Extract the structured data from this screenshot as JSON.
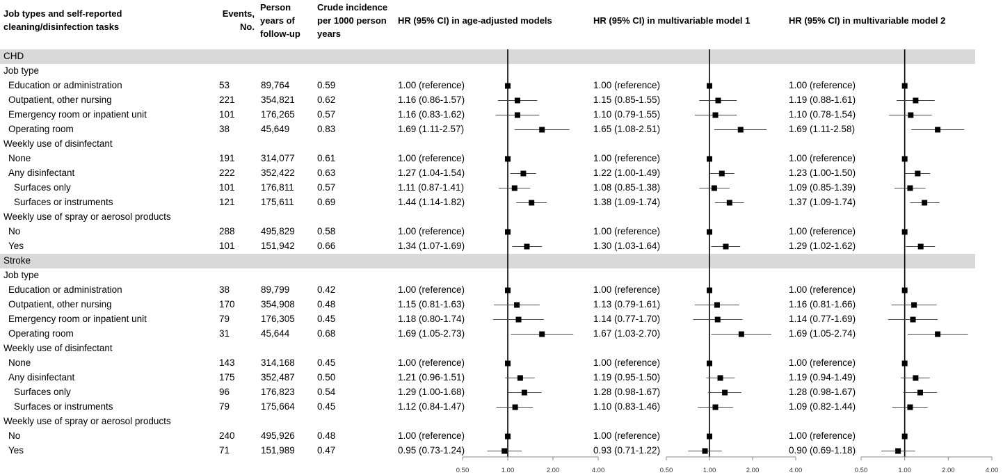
{
  "headers": {
    "task": [
      "Job types and self-reported",
      "cleaning/disinfection tasks"
    ],
    "events": [
      "Events,",
      "No."
    ],
    "person_years": [
      "Person",
      "years of",
      "follow-up"
    ],
    "crude": [
      "Crude incidence",
      "per 1000 person",
      "years"
    ],
    "m0": "HR (95% CI) in age-adjusted models",
    "m1": "HR (95% CI) in multivariable model 1",
    "m2": "HR (95% CI) in multivariable model 2"
  },
  "rows": [
    {
      "type": "band",
      "label": "CHD"
    },
    {
      "type": "group",
      "label": "Job type"
    },
    {
      "type": "data",
      "label": "Education or administration",
      "indent": 1,
      "events": "53",
      "py": "89,764",
      "crude": "0.59",
      "ci": [
        "1.00 (reference)",
        "1.00 (reference)",
        "1.00 (reference)"
      ],
      "hr": [
        [
          1.0,
          1.0,
          1.0
        ],
        [
          1.0,
          1.0,
          1.0
        ],
        [
          1.0,
          1.0,
          1.0
        ]
      ]
    },
    {
      "type": "data",
      "label": "Outpatient, other nursing",
      "indent": 1,
      "events": "221",
      "py": "354,821",
      "crude": "0.62",
      "ci": [
        "1.16 (0.86-1.57)",
        "1.15 (0.85-1.55)",
        "1.19 (0.88-1.61)"
      ],
      "hr": [
        [
          1.16,
          0.86,
          1.57
        ],
        [
          1.15,
          0.85,
          1.55
        ],
        [
          1.19,
          0.88,
          1.61
        ]
      ]
    },
    {
      "type": "data",
      "label": "Emergency room or inpatient unit",
      "indent": 1,
      "events": "101",
      "py": "176,265",
      "crude": "0.57",
      "ci": [
        "1.16 (0.83-1.62)",
        "1.10 (0.79-1.55)",
        "1.10 (0.78-1.54)"
      ],
      "hr": [
        [
          1.16,
          0.83,
          1.62
        ],
        [
          1.1,
          0.79,
          1.55
        ],
        [
          1.1,
          0.78,
          1.54
        ]
      ]
    },
    {
      "type": "data",
      "label": "Operating room",
      "indent": 1,
      "events": "38",
      "py": "45,649",
      "crude": "0.83",
      "ci": [
        "1.69 (1.11-2.57)",
        "1.65 (1.08-2.51)",
        "1.69 (1.11-2.58)"
      ],
      "hr": [
        [
          1.69,
          1.11,
          2.57
        ],
        [
          1.65,
          1.08,
          2.51
        ],
        [
          1.69,
          1.11,
          2.58
        ]
      ]
    },
    {
      "type": "group",
      "label": "Weekly use of disinfectant"
    },
    {
      "type": "data",
      "label": "None",
      "indent": 1,
      "events": "191",
      "py": "314,077",
      "crude": "0.61",
      "ci": [
        "1.00 (reference)",
        "1.00 (reference)",
        "1.00 (reference)"
      ],
      "hr": [
        [
          1.0,
          1.0,
          1.0
        ],
        [
          1.0,
          1.0,
          1.0
        ],
        [
          1.0,
          1.0,
          1.0
        ]
      ]
    },
    {
      "type": "data",
      "label": "Any disinfectant",
      "indent": 1,
      "events": "222",
      "py": "352,422",
      "crude": "0.63",
      "ci": [
        "1.27 (1.04-1.54)",
        "1.22 (1.00-1.49)",
        "1.23 (1.00-1.50)"
      ],
      "hr": [
        [
          1.27,
          1.04,
          1.54
        ],
        [
          1.22,
          1.0,
          1.49
        ],
        [
          1.23,
          1.0,
          1.5
        ]
      ]
    },
    {
      "type": "data",
      "label": "Surfaces only",
      "indent": 2,
      "events": "101",
      "py": "176,811",
      "crude": "0.57",
      "ci": [
        "1.11 (0.87-1.41)",
        "1.08 (0.85-1.38)",
        "1.09 (0.85-1.39)"
      ],
      "hr": [
        [
          1.11,
          0.87,
          1.41
        ],
        [
          1.08,
          0.85,
          1.38
        ],
        [
          1.09,
          0.85,
          1.39
        ]
      ]
    },
    {
      "type": "data",
      "label": "Surfaces or instruments",
      "indent": 2,
      "events": "121",
      "py": "175,611",
      "crude": "0.69",
      "ci": [
        "1.44 (1.14-1.82)",
        "1.38 (1.09-1.74)",
        "1.37 (1.09-1.74)"
      ],
      "hr": [
        [
          1.44,
          1.14,
          1.82
        ],
        [
          1.38,
          1.09,
          1.74
        ],
        [
          1.37,
          1.09,
          1.74
        ]
      ]
    },
    {
      "type": "group",
      "label": "Weekly use of spray or aerosol products"
    },
    {
      "type": "data",
      "label": "No",
      "indent": 1,
      "events": "288",
      "py": "495,829",
      "crude": "0.58",
      "ci": [
        "1.00 (reference)",
        "1.00 (reference)",
        "1.00 (reference)"
      ],
      "hr": [
        [
          1.0,
          1.0,
          1.0
        ],
        [
          1.0,
          1.0,
          1.0
        ],
        [
          1.0,
          1.0,
          1.0
        ]
      ]
    },
    {
      "type": "data",
      "label": "Yes",
      "indent": 1,
      "events": "101",
      "py": "151,942",
      "crude": "0.66",
      "ci": [
        "1.34 (1.07-1.69)",
        "1.30 (1.03-1.64)",
        "1.29 (1.02-1.62)"
      ],
      "hr": [
        [
          1.34,
          1.07,
          1.69
        ],
        [
          1.3,
          1.03,
          1.64
        ],
        [
          1.29,
          1.02,
          1.62
        ]
      ]
    },
    {
      "type": "band",
      "label": "Stroke"
    },
    {
      "type": "group",
      "label": "Job type"
    },
    {
      "type": "data",
      "label": "Education or administration",
      "indent": 1,
      "events": "38",
      "py": "89,799",
      "crude": "0.42",
      "ci": [
        "1.00 (reference)",
        "1.00 (reference)",
        "1.00 (reference)"
      ],
      "hr": [
        [
          1.0,
          1.0,
          1.0
        ],
        [
          1.0,
          1.0,
          1.0
        ],
        [
          1.0,
          1.0,
          1.0
        ]
      ]
    },
    {
      "type": "data",
      "label": "Outpatient, other nursing",
      "indent": 1,
      "events": "170",
      "py": "354,908",
      "crude": "0.48",
      "ci": [
        "1.15 (0.81-1.63)",
        "1.13 (0.79-1.61)",
        "1.16 (0.81-1.66)"
      ],
      "hr": [
        [
          1.15,
          0.81,
          1.63
        ],
        [
          1.13,
          0.79,
          1.61
        ],
        [
          1.16,
          0.81,
          1.66
        ]
      ]
    },
    {
      "type": "data",
      "label": "Emergency room or inpatient unit",
      "indent": 1,
      "events": "79",
      "py": "176,305",
      "crude": "0.45",
      "ci": [
        "1.18 (0.80-1.74)",
        "1.14 (0.77-1.70)",
        "1.14 (0.77-1.69)"
      ],
      "hr": [
        [
          1.18,
          0.8,
          1.74
        ],
        [
          1.14,
          0.77,
          1.7
        ],
        [
          1.14,
          0.77,
          1.69
        ]
      ]
    },
    {
      "type": "data",
      "label": "Operating room",
      "indent": 1,
      "events": "31",
      "py": "45,644",
      "crude": "0.68",
      "ci": [
        "1.69 (1.05-2.73)",
        "1.67 (1.03-2.70)",
        "1.69 (1.05-2.74)"
      ],
      "hr": [
        [
          1.69,
          1.05,
          2.73
        ],
        [
          1.67,
          1.03,
          2.7
        ],
        [
          1.69,
          1.05,
          2.74
        ]
      ]
    },
    {
      "type": "group",
      "label": "Weekly use of disinfectant"
    },
    {
      "type": "data",
      "label": "None",
      "indent": 1,
      "events": "143",
      "py": "314,168",
      "crude": "0.45",
      "ci": [
        "1.00 (reference)",
        "1.00 (reference)",
        "1.00 (reference)"
      ],
      "hr": [
        [
          1.0,
          1.0,
          1.0
        ],
        [
          1.0,
          1.0,
          1.0
        ],
        [
          1.0,
          1.0,
          1.0
        ]
      ]
    },
    {
      "type": "data",
      "label": "Any disinfectant",
      "indent": 1,
      "events": "175",
      "py": "352,487",
      "crude": "0.50",
      "ci": [
        "1.21 (0.96-1.51)",
        "1.19 (0.95-1.50)",
        "1.19 (0.94-1.49)"
      ],
      "hr": [
        [
          1.21,
          0.96,
          1.51
        ],
        [
          1.19,
          0.95,
          1.5
        ],
        [
          1.19,
          0.94,
          1.49
        ]
      ]
    },
    {
      "type": "data",
      "label": "Surfaces only",
      "indent": 2,
      "events": "96",
      "py": "176,823",
      "crude": "0.54",
      "ci": [
        "1.29 (1.00-1.68)",
        "1.28 (0.98-1.67)",
        "1.28 (0.98-1.67)"
      ],
      "hr": [
        [
          1.29,
          1.0,
          1.68
        ],
        [
          1.28,
          0.98,
          1.67
        ],
        [
          1.28,
          0.98,
          1.67
        ]
      ]
    },
    {
      "type": "data",
      "label": "Surfaces or instruments",
      "indent": 2,
      "events": "79",
      "py": "175,664",
      "crude": "0.45",
      "ci": [
        "1.12 (0.84-1.47)",
        "1.10 (0.83-1.46)",
        "1.09 (0.82-1.44)"
      ],
      "hr": [
        [
          1.12,
          0.84,
          1.47
        ],
        [
          1.1,
          0.83,
          1.46
        ],
        [
          1.09,
          0.82,
          1.44
        ]
      ]
    },
    {
      "type": "group",
      "label": "Weekly use of spray or aerosol products"
    },
    {
      "type": "data",
      "label": "No",
      "indent": 1,
      "events": "240",
      "py": "495,926",
      "crude": "0.48",
      "ci": [
        "1.00 (reference)",
        "1.00 (reference)",
        "1.00 (reference)"
      ],
      "hr": [
        [
          1.0,
          1.0,
          1.0
        ],
        [
          1.0,
          1.0,
          1.0
        ],
        [
          1.0,
          1.0,
          1.0
        ]
      ]
    },
    {
      "type": "data",
      "label": "Yes",
      "indent": 1,
      "events": "71",
      "py": "151,989",
      "crude": "0.47",
      "ci": [
        "0.95 (0.73-1.24)",
        "0.93 (0.71-1.22)",
        "0.90 (0.69-1.18)"
      ],
      "hr": [
        [
          0.95,
          0.73,
          1.24
        ],
        [
          0.93,
          0.71,
          1.22
        ],
        [
          0.9,
          0.69,
          1.18
        ]
      ]
    }
  ],
  "chart_data": {
    "type": "forest",
    "scale": "log",
    "x_ticks": [
      "0.50",
      "1.00",
      "2.00",
      "4.00"
    ],
    "xlim": [
      0.5,
      4.0
    ],
    "reference_line": 1.0,
    "panels": [
      "HR (95% CI) in age-adjusted models",
      "HR (95% CI) in multivariable model 1",
      "HR (95% CI) in multivariable model 2"
    ],
    "colors": {
      "band": "#d9d9d9",
      "marker": "#000000",
      "whisker": "#444444"
    }
  }
}
